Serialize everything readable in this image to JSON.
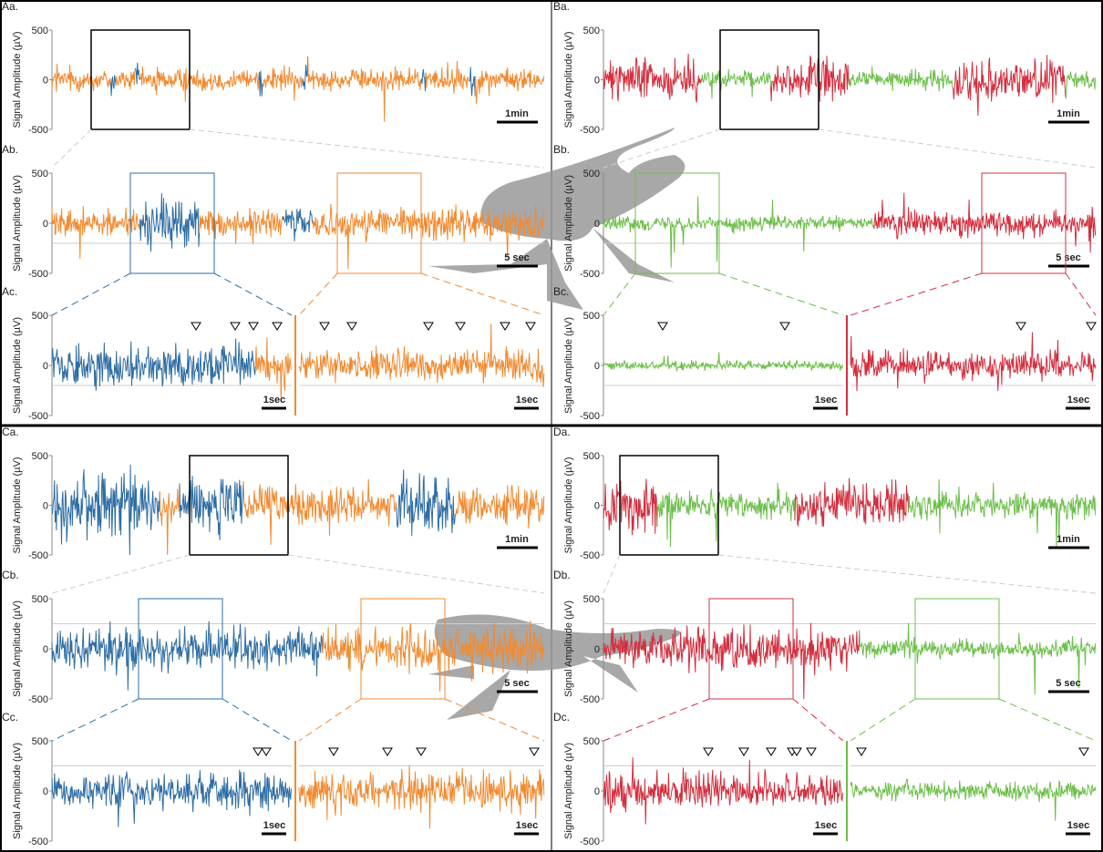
{
  "y_axis_label": "Signal Amplitude (µV)",
  "ylim": [
    -500,
    500
  ],
  "yticks": [
    500,
    0,
    -500
  ],
  "panels": [
    {
      "rows": [
        {
          "label": "Aa.",
          "scales": [
            "1min"
          ]
        },
        {
          "label": "Ab.",
          "scales": [
            "5 sec"
          ]
        },
        {
          "label": "Ac.",
          "scales": [
            "1sec",
            "1sec"
          ]
        }
      ]
    },
    {
      "rows": [
        {
          "label": "Ba.",
          "scales": [
            "1min"
          ]
        },
        {
          "label": "Bb.",
          "scales": [
            "5 sec"
          ]
        },
        {
          "label": "Bc.",
          "scales": [
            "1sec",
            "1sec"
          ]
        }
      ]
    },
    {
      "rows": [
        {
          "label": "Ca.",
          "scales": [
            "1min"
          ]
        },
        {
          "label": "Cb.",
          "scales": [
            "5 sec"
          ]
        },
        {
          "label": "Cc.",
          "scales": [
            "1sec",
            "1sec"
          ]
        }
      ]
    },
    {
      "rows": [
        {
          "label": "Da.",
          "scales": [
            "1min"
          ]
        },
        {
          "label": "Db.",
          "scales": [
            "5 sec"
          ]
        },
        {
          "label": "Dc.",
          "scales": [
            "1sec",
            "1sec"
          ]
        }
      ]
    }
  ]
}
